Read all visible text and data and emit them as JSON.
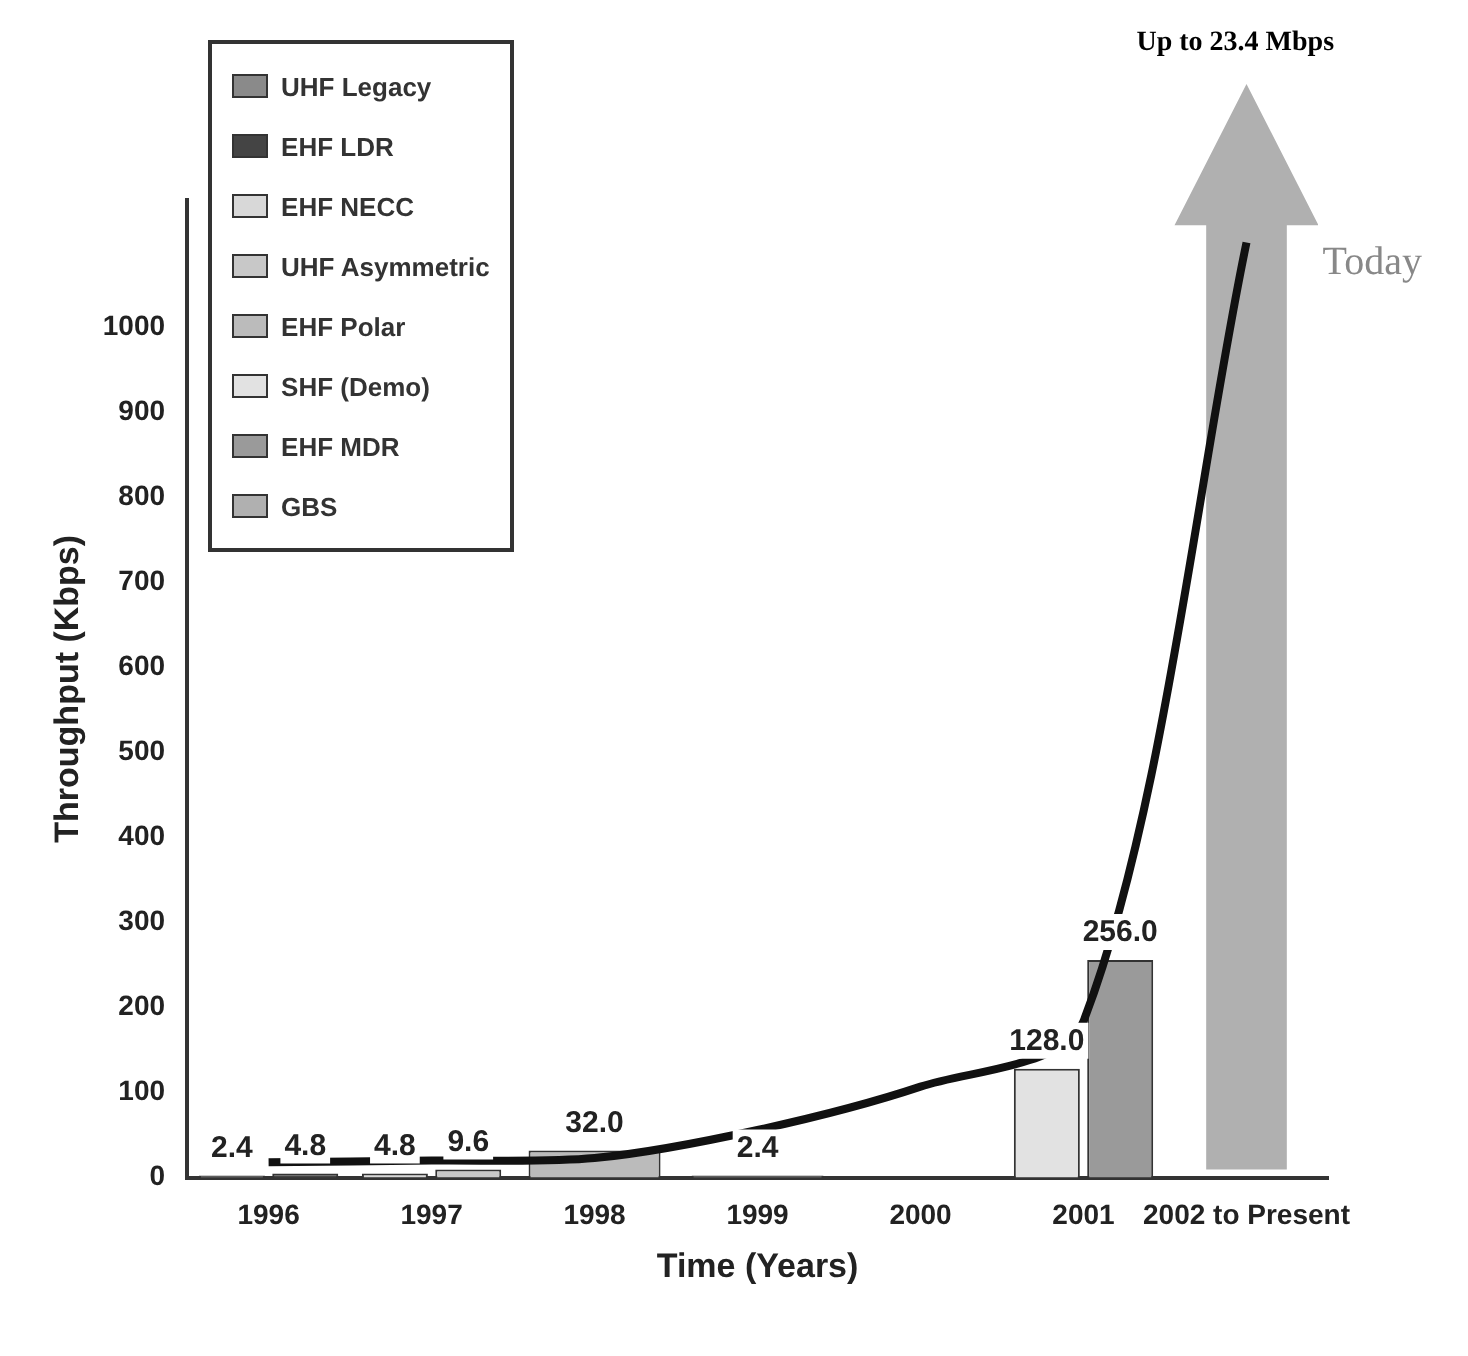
{
  "chart_data": {
    "type": "bar",
    "xlabel": "Time (Years)",
    "ylabel": "Throughput (Kbps)",
    "categories": [
      "1996",
      "1997",
      "1998",
      "1999",
      "2000",
      "2001",
      "2002 to Present"
    ],
    "ylim": [
      0,
      1150
    ],
    "yticks": [
      0,
      100,
      200,
      300,
      400,
      500,
      600,
      700,
      800,
      900,
      1000
    ],
    "grid": false,
    "legend": "top left",
    "marker": "none",
    "series": [
      {
        "name": "UHF Legacy",
        "color": "#8a8a8a",
        "values": [
          2.4,
          null,
          null,
          2.4,
          null,
          null,
          null
        ],
        "value_labels": [
          "2.4",
          null,
          null,
          "2.4",
          null,
          null,
          null
        ]
      },
      {
        "name": "EHF LDR",
        "color": "#444444",
        "values": [
          4.8,
          null,
          null,
          null,
          null,
          null,
          null
        ],
        "value_labels": [
          "4.8",
          null,
          null,
          null,
          null,
          null,
          null
        ]
      },
      {
        "name": "EHF NECC",
        "color": "#d8d8d8",
        "values": [
          null,
          4.8,
          null,
          null,
          null,
          null,
          null
        ],
        "value_labels": [
          null,
          "4.8",
          null,
          null,
          null,
          null,
          null
        ]
      },
      {
        "name": "UHF Asymmetric",
        "color": "#c8c8c8",
        "values": [
          null,
          9.6,
          null,
          null,
          null,
          null,
          null
        ],
        "value_labels": [
          null,
          "9.6",
          null,
          null,
          null,
          null,
          null
        ]
      },
      {
        "name": "EHF Polar",
        "color": "#bbbbbb",
        "values": [
          null,
          null,
          32.0,
          null,
          null,
          null,
          null
        ],
        "value_labels": [
          null,
          null,
          "32.0",
          null,
          null,
          null,
          null
        ]
      },
      {
        "name": "SHF (Demo)",
        "color": "#e2e2e2",
        "values": [
          null,
          null,
          null,
          null,
          null,
          128.0,
          null
        ],
        "value_labels": [
          null,
          null,
          null,
          null,
          null,
          "128.0",
          null
        ]
      },
      {
        "name": "EHF MDR",
        "color": "#9a9a9a",
        "values": [
          null,
          null,
          null,
          null,
          null,
          256.0,
          null
        ],
        "value_labels": [
          null,
          null,
          null,
          null,
          null,
          "256.0",
          null
        ]
      },
      {
        "name": "GBS",
        "color": "#b0b0b0",
        "values": [
          null,
          null,
          null,
          null,
          null,
          null,
          null
        ]
      },
      {
        "type": "line",
        "color": "#111111",
        "values": [
          18,
          20,
          23,
          56,
          107,
          184,
          1100
        ]
      }
    ],
    "annotations": [
      "Up to 23.4 Mbps",
      "Today"
    ]
  }
}
